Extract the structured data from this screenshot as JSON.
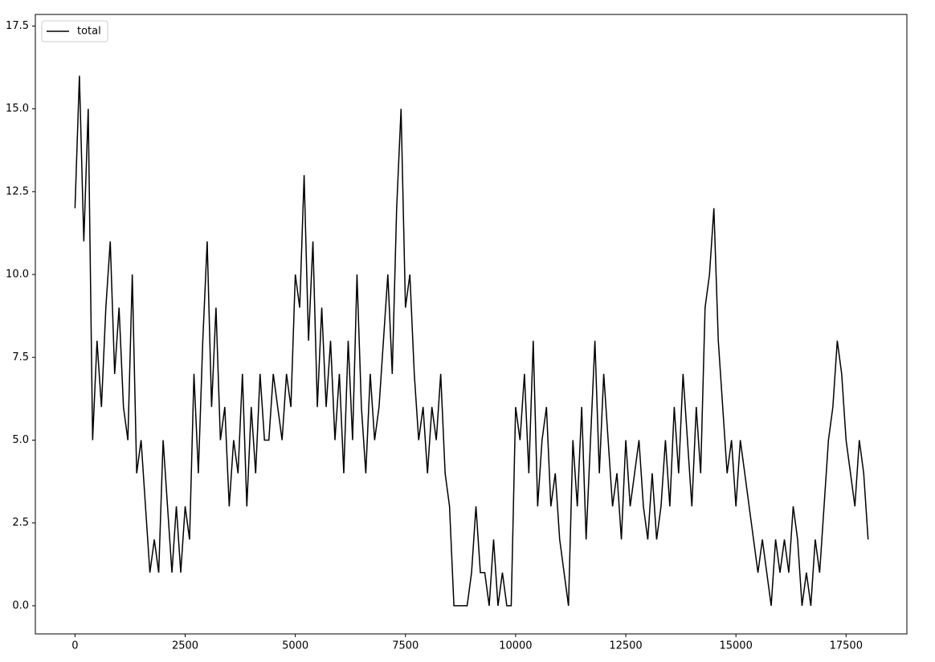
{
  "chart_data": {
    "type": "line",
    "x": [
      0,
      100,
      200,
      300,
      400,
      500,
      600,
      700,
      800,
      900,
      1000,
      1100,
      1200,
      1300,
      1400,
      1500,
      1600,
      1700,
      1800,
      1900,
      2000,
      2100,
      2200,
      2300,
      2400,
      2500,
      2600,
      2700,
      2800,
      2900,
      3000,
      3100,
      3200,
      3300,
      3400,
      3500,
      3600,
      3700,
      3800,
      3900,
      4000,
      4100,
      4200,
      4300,
      4400,
      4500,
      4600,
      4700,
      4800,
      4900,
      5000,
      5100,
      5200,
      5300,
      5400,
      5500,
      5600,
      5700,
      5800,
      5900,
      6000,
      6100,
      6200,
      6300,
      6400,
      6500,
      6600,
      6700,
      6800,
      6900,
      7000,
      7100,
      7200,
      7300,
      7400,
      7500,
      7600,
      7700,
      7800,
      7900,
      8000,
      8100,
      8200,
      8300,
      8400,
      8500,
      8600,
      8700,
      8800,
      8900,
      9000,
      9100,
      9200,
      9300,
      9400,
      9500,
      9600,
      9700,
      9800,
      9900,
      10000,
      10100,
      10200,
      10300,
      10400,
      10500,
      10600,
      10700,
      10800,
      10900,
      11000,
      11100,
      11200,
      11300,
      11400,
      11500,
      11600,
      11700,
      11800,
      11900,
      12000,
      12100,
      12200,
      12300,
      12400,
      12500,
      12600,
      12700,
      12800,
      12900,
      13000,
      13100,
      13200,
      13300,
      13400,
      13500,
      13600,
      13700,
      13800,
      13900,
      14000,
      14100,
      14200,
      14300,
      14400,
      14500,
      14600,
      14700,
      14800,
      14900,
      15000,
      15100,
      15200,
      15300,
      15400,
      15500,
      15600,
      15700,
      15800,
      15900,
      16000,
      16100,
      16200,
      16300,
      16400,
      16500,
      16600,
      16700,
      16800,
      16900,
      17000,
      17100,
      17200,
      17300,
      17400,
      17500,
      17600,
      17700,
      17800,
      17900,
      18000
    ],
    "series": [
      {
        "name": "total",
        "color": "#000000",
        "values": [
          12,
          16,
          11,
          15,
          5,
          8,
          6,
          9,
          11,
          7,
          9,
          6,
          5,
          10,
          4,
          5,
          3,
          1,
          2,
          1,
          5,
          3,
          1,
          3,
          1,
          3,
          2,
          7,
          4,
          8,
          11,
          6,
          9,
          5,
          6,
          3,
          5,
          4,
          7,
          3,
          6,
          4,
          7,
          5,
          5,
          7,
          6,
          5,
          7,
          6,
          10,
          9,
          13,
          8,
          11,
          6,
          9,
          6,
          8,
          5,
          7,
          4,
          8,
          5,
          10,
          6,
          4,
          7,
          5,
          6,
          8,
          10,
          7,
          12,
          15,
          9,
          10,
          7,
          5,
          6,
          4,
          6,
          5,
          7,
          4,
          3,
          0,
          0,
          0,
          0,
          1,
          3,
          1,
          1,
          0,
          2,
          0,
          1,
          0,
          0,
          6,
          5,
          7,
          4,
          8,
          3,
          5,
          6,
          3,
          4,
          2,
          1,
          0,
          5,
          3,
          6,
          2,
          5,
          8,
          4,
          7,
          5,
          3,
          4,
          2,
          5,
          3,
          4,
          5,
          3,
          2,
          4,
          2,
          3,
          5,
          3,
          6,
          4,
          7,
          5,
          3,
          6,
          4,
          9,
          10,
          12,
          8,
          6,
          4,
          5,
          3,
          5,
          4,
          3,
          2,
          1,
          2,
          1,
          0,
          2,
          1,
          2,
          1,
          3,
          2,
          0,
          1,
          0,
          2,
          1,
          3,
          5,
          6,
          8,
          7,
          5,
          4,
          3,
          5,
          4,
          2
        ]
      }
    ],
    "xlim": [
      -900,
      18880
    ],
    "ylim": [
      -0.85,
      17.85
    ],
    "xticks": [
      0,
      2500,
      5000,
      7500,
      10000,
      12500,
      15000,
      17500
    ],
    "yticks": [
      {
        "value": 0,
        "label": "0.0"
      },
      {
        "value": 2.5,
        "label": "2.5"
      },
      {
        "value": 5,
        "label": "5.0"
      },
      {
        "value": 7.5,
        "label": "7.5"
      },
      {
        "value": 10,
        "label": "10.0"
      },
      {
        "value": 12.5,
        "label": "12.5"
      },
      {
        "value": 15,
        "label": "15.0"
      },
      {
        "value": 17.5,
        "label": "17.5"
      }
    ],
    "legend": "upper left"
  }
}
